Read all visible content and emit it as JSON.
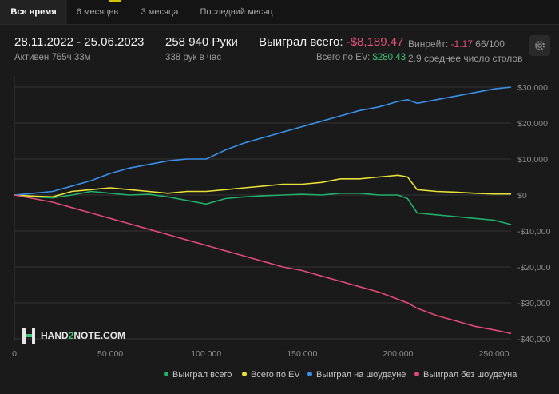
{
  "tabs": [
    {
      "label": "Все время",
      "active": true
    },
    {
      "label": "6 месяцев",
      "active": false
    },
    {
      "label": "3 месяца",
      "active": false
    },
    {
      "label": "Последний месяц",
      "active": false
    }
  ],
  "summary": {
    "date_range": "28.11.2022 - 25.06.2023",
    "active_time": "Активен 765ч 33м",
    "hands": "258 940 Руки",
    "hands_per_hour": "338 рук в час",
    "won_label": "Выиграл всего:",
    "won_value": "-$8,189.47",
    "winrate_label": "Винрейт:",
    "winrate_value": "-1.17",
    "winrate_sample": "66/100",
    "ev_label": "Всего по EV:",
    "ev_value": "$280.43",
    "tables": "2.9 среднее число столов"
  },
  "logo": {
    "text_pre": "HAND",
    "text_mid": "2",
    "text_post": "NOTE.COM"
  },
  "colors": {
    "won": "#20b06a",
    "ev": "#e8e03a",
    "showdown": "#3a8fe8",
    "non_showdown": "#e04a78"
  },
  "chart_data": {
    "type": "line",
    "xlim": [
      0,
      258940
    ],
    "ylim": [
      -40000,
      30000
    ],
    "x_ticks": [
      0,
      50000,
      100000,
      150000,
      200000,
      250000
    ],
    "x_tick_labels": [
      "0",
      "50 000",
      "100 000",
      "150 000",
      "200 000",
      "250 000"
    ],
    "y_ticks": [
      30000,
      20000,
      10000,
      0,
      -10000,
      -20000,
      -30000,
      -40000
    ],
    "y_tick_labels": [
      "$30,000",
      "$20,000",
      "$10,000",
      "$0",
      "-$10,000",
      "-$20,000",
      "-$30,000",
      "-$40,000"
    ],
    "grid": true,
    "legend_position": "bottom",
    "series": [
      {
        "name": "Выиграл всего",
        "color": "#20b06a",
        "x": [
          0,
          10000,
          20000,
          30000,
          40000,
          50000,
          60000,
          70000,
          80000,
          90000,
          100000,
          110000,
          120000,
          130000,
          140000,
          150000,
          160000,
          170000,
          180000,
          190000,
          200000,
          205000,
          210000,
          220000,
          230000,
          240000,
          250000,
          258940
        ],
        "y": [
          0,
          -500,
          -800,
          0,
          1000,
          500,
          0,
          200,
          -500,
          -1500,
          -2500,
          -1000,
          -500,
          -200,
          0,
          200,
          0,
          500,
          500,
          0,
          0,
          -1000,
          -5000,
          -5500,
          -6000,
          -6500,
          -7000,
          -8189
        ]
      },
      {
        "name": "Всего по EV",
        "color": "#e8e03a",
        "x": [
          0,
          10000,
          20000,
          30000,
          40000,
          50000,
          60000,
          70000,
          80000,
          90000,
          100000,
          110000,
          120000,
          130000,
          140000,
          150000,
          160000,
          170000,
          180000,
          190000,
          200000,
          205000,
          210000,
          220000,
          230000,
          240000,
          250000,
          258940
        ],
        "y": [
          0,
          -300,
          -500,
          1000,
          1500,
          2000,
          1500,
          1000,
          500,
          1000,
          1000,
          1500,
          2000,
          2500,
          3000,
          3000,
          3500,
          4500,
          4500,
          5000,
          5500,
          5000,
          1500,
          1000,
          800,
          500,
          300,
          280
        ]
      },
      {
        "name": "Выиграл на шоудауне",
        "color": "#3a8fe8",
        "x": [
          0,
          10000,
          20000,
          30000,
          40000,
          50000,
          60000,
          70000,
          80000,
          90000,
          100000,
          110000,
          120000,
          130000,
          140000,
          150000,
          160000,
          170000,
          180000,
          190000,
          200000,
          205000,
          210000,
          220000,
          230000,
          240000,
          250000,
          258940
        ],
        "y": [
          0,
          500,
          1000,
          2500,
          4000,
          6000,
          7500,
          8500,
          9500,
          10000,
          10000,
          12500,
          14500,
          16000,
          17500,
          19000,
          20500,
          22000,
          23500,
          24500,
          26000,
          26500,
          25500,
          26500,
          27500,
          28500,
          29500,
          30000
        ]
      },
      {
        "name": "Выиграл без шоудауна",
        "color": "#e04a78",
        "x": [
          0,
          10000,
          20000,
          30000,
          40000,
          50000,
          60000,
          70000,
          80000,
          90000,
          100000,
          110000,
          120000,
          130000,
          140000,
          150000,
          160000,
          170000,
          180000,
          190000,
          200000,
          205000,
          210000,
          220000,
          230000,
          240000,
          250000,
          258940
        ],
        "y": [
          0,
          -1000,
          -2000,
          -3500,
          -5000,
          -6500,
          -8000,
          -9500,
          -11000,
          -12500,
          -14000,
          -15500,
          -17000,
          -18500,
          -20000,
          -21000,
          -22500,
          -24000,
          -25500,
          -27000,
          -29000,
          -30000,
          -31500,
          -33500,
          -35000,
          -36500,
          -37500,
          -38500
        ]
      }
    ]
  }
}
